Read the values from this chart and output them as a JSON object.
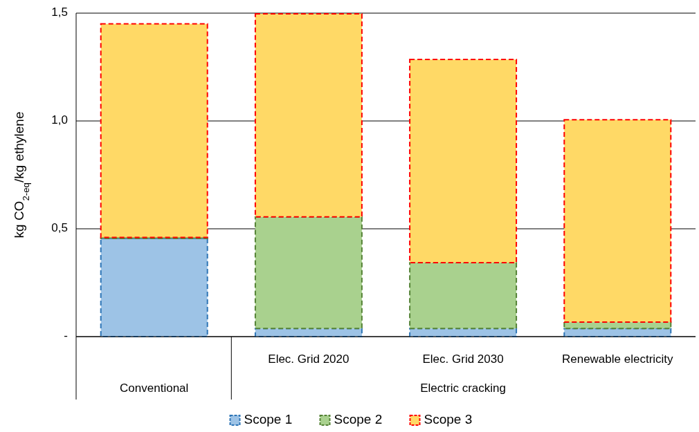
{
  "chart_data": {
    "type": "bar",
    "stacked": true,
    "ylabel": "kg CO$_{2-eq}$/kg ethylene",
    "categories": [
      null,
      "Elec. Grid 2020",
      "Elec. Grid 2030",
      "Renewable electricity"
    ],
    "annotations": [
      "Conventional",
      "Electric cracking"
    ],
    "series": [
      {
        "name": "Scope 1",
        "color": "#9dc3e6",
        "values": [
          0.455,
          0.038,
          0.038,
          0.038
        ]
      },
      {
        "name": "Scope 2",
        "color": "#a9d18e",
        "values": [
          0.005,
          0.517,
          0.305,
          0.029
        ]
      },
      {
        "name": "Scope 3",
        "color": "#ffd966",
        "values": [
          0.99,
          0.942,
          0.942,
          0.939
        ]
      }
    ],
    "ylim": [
      0,
      1.5
    ],
    "yticks": [
      {
        "value": 0,
        "label": "-"
      },
      {
        "value": 0.5,
        "label": "0,5"
      },
      {
        "value": 1,
        "label": "1,0"
      },
      {
        "value": 1.5,
        "label": "1,5"
      }
    ],
    "grid": "y",
    "legend": "bottom",
    "line_style": "dashed"
  }
}
